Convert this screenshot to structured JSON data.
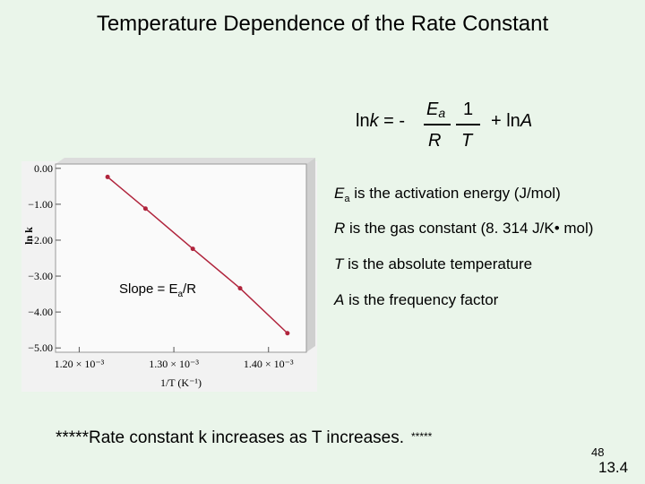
{
  "title": "Temperature Dependence of the Rate Constant",
  "equation": {
    "ln_left": "ln",
    "k": "k",
    "equals": " = -",
    "E": "E",
    "a": "a",
    "R": "R",
    "one": "1",
    "T": "T",
    "plus_ln": "+ ln",
    "A": "A"
  },
  "definitions": [
    {
      "symbol": "E",
      "subscript": "a",
      "text": " is the activation energy (J/mol)"
    },
    {
      "symbol": "R",
      "text": " is the gas constant (8. 314 J/K• mol)"
    },
    {
      "symbol": "T",
      "text": " is the absolute temperature"
    },
    {
      "symbol": "A",
      "text": " is the frequency factor"
    }
  ],
  "chart_data": {
    "type": "line",
    "x_label": "1/T (K⁻¹)",
    "y_label": "ln k",
    "annotation": {
      "text": "Slope = E",
      "subscript": "a",
      "suffix": "/R"
    },
    "x": [
      0.00123,
      0.00127,
      0.00132,
      0.00137,
      0.00142
    ],
    "series": [
      {
        "color": "#b0243c",
        "values": [
          -0.24,
          -1.12,
          -2.24,
          -3.34,
          -4.59
        ]
      }
    ],
    "xlim": [
      0.001175,
      0.00144
    ],
    "ylim": [
      -5.12,
      0.12
    ],
    "xticks": [
      {
        "value": 0.0012,
        "label": "1.20 × 10⁻³"
      },
      {
        "value": 0.0013,
        "label": "1.30 × 10⁻³"
      },
      {
        "value": 0.0014,
        "label": "1.40 × 10⁻³"
      }
    ],
    "yticks": [
      {
        "value": 0,
        "label": "0.00"
      },
      {
        "value": -1,
        "label": "−1.00"
      },
      {
        "value": -2,
        "label": "−2.00"
      },
      {
        "value": -3,
        "label": "−3.00"
      },
      {
        "value": -4,
        "label": "−4.00"
      },
      {
        "value": -5,
        "label": "−5.00"
      }
    ]
  },
  "footer": {
    "text": "*****Rate constant k increases as T increases.",
    "stars": "*****"
  },
  "page_number": "48",
  "section": "13.4"
}
